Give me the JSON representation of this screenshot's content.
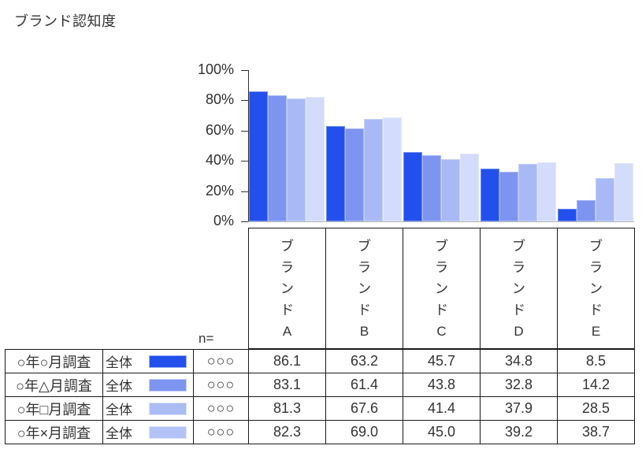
{
  "title": "ブランド認知度",
  "colors": {
    "series": [
      "#2350ec",
      "#7d95f1",
      "#a8b9f5",
      "#d3dcfa"
    ],
    "legend_swatches": [
      "#2350ec",
      "#7d95f1",
      "#abbcf5",
      "#b3c3f7"
    ],
    "axis": "#333333",
    "baseline": "#b2b2b2",
    "table_border": "#1a1a1a",
    "text": "#333333"
  },
  "chart_data": {
    "type": "bar",
    "title": "ブランド認知度",
    "categories": [
      "ブランドA",
      "ブランドB",
      "ブランドC",
      "ブランドD",
      "ブランドE"
    ],
    "series": [
      {
        "name": "○年○月調査",
        "values": [
          86.1,
          63.2,
          45.7,
          34.8,
          8.5
        ]
      },
      {
        "name": "○年△月調査",
        "values": [
          83.1,
          61.4,
          43.8,
          32.8,
          14.2
        ]
      },
      {
        "name": "○年□月調査",
        "values": [
          81.3,
          67.6,
          41.4,
          37.9,
          28.5
        ]
      },
      {
        "name": "○年×月調査",
        "values": [
          82.3,
          69.0,
          45.0,
          39.2,
          38.7
        ]
      }
    ],
    "xlabel": "",
    "ylabel": "",
    "ylim": [
      0,
      100
    ],
    "yticks": [
      "100%",
      "80%",
      "60%",
      "40%",
      "20%",
      "0%"
    ],
    "grid": false,
    "legend_position": "table-below-chart"
  },
  "table": {
    "n_label": "n=",
    "rows": [
      {
        "survey": "○年○月調査",
        "group": "全体",
        "n": "○○○",
        "values": [
          "86.1",
          "63.2",
          "45.7",
          "34.8",
          "8.5"
        ]
      },
      {
        "survey": "○年△月調査",
        "group": "全体",
        "n": "○○○",
        "values": [
          "83.1",
          "61.4",
          "43.8",
          "32.8",
          "14.2"
        ]
      },
      {
        "survey": "○年□月調査",
        "group": "全体",
        "n": "○○○",
        "values": [
          "81.3",
          "67.6",
          "41.4",
          "37.9",
          "28.5"
        ]
      },
      {
        "survey": "○年×月調査",
        "group": "全体",
        "n": "○○○",
        "values": [
          "82.3",
          "69.0",
          "45.0",
          "39.2",
          "38.7"
        ]
      }
    ]
  }
}
